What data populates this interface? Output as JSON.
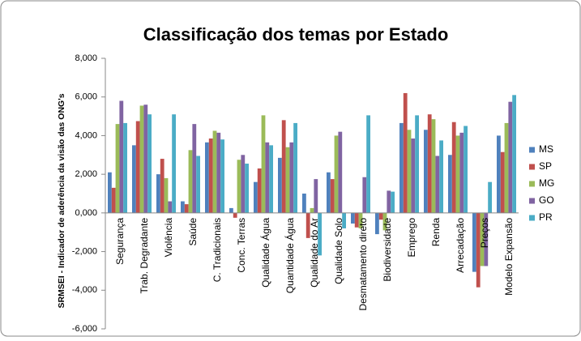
{
  "chart_data": {
    "type": "bar",
    "title": "Classificação dos temas por Estado",
    "y_label": "SRMSEI - Indicador de aderência da visão das ONG's",
    "categories": [
      "Segurança",
      "Trab. Degradante",
      "Violência",
      "Saúde",
      "C. Tradicionais",
      "Conc. Terras",
      "Qualidade Água",
      "Quantidade Água",
      "Qualidade do Ar",
      "Qualidade Solo",
      "Desmatamento direto",
      "Biodiversidade",
      "Emprego",
      "Renda",
      "Arrecadação",
      "Preços",
      "Modelo Expansão"
    ],
    "series": [
      {
        "name": "MS",
        "color": "#4f81bd",
        "values": [
          2.1,
          3.5,
          2.0,
          0.6,
          3.65,
          0.25,
          1.6,
          2.85,
          1.0,
          2.1,
          -0.55,
          -1.1,
          4.65,
          4.3,
          3.0,
          -3.05,
          4.0
        ]
      },
      {
        "name": "SP",
        "color": "#c0504d",
        "values": [
          1.3,
          4.75,
          2.8,
          0.45,
          3.85,
          -0.25,
          2.3,
          4.8,
          -1.3,
          1.75,
          -0.75,
          -0.35,
          6.2,
          5.1,
          4.7,
          -3.85,
          3.15
        ]
      },
      {
        "name": "MG",
        "color": "#9bbb59",
        "values": [
          4.6,
          5.55,
          1.8,
          3.25,
          4.25,
          2.75,
          5.05,
          3.4,
          0.25,
          4.0,
          -0.8,
          -0.9,
          4.3,
          4.85,
          4.0,
          -2.75,
          4.65
        ]
      },
      {
        "name": "GO",
        "color": "#8064a2",
        "values": [
          5.8,
          5.6,
          0.6,
          4.6,
          4.15,
          3.0,
          3.65,
          3.65,
          1.75,
          4.2,
          1.85,
          1.15,
          3.85,
          2.95,
          4.15,
          -2.75,
          5.75
        ]
      },
      {
        "name": "PR",
        "color": "#4bacc6",
        "values": [
          4.65,
          5.1,
          5.1,
          2.95,
          3.8,
          2.55,
          3.5,
          4.65,
          -2.2,
          -0.8,
          5.05,
          1.1,
          5.05,
          3.75,
          4.5,
          1.6,
          6.1
        ]
      }
    ],
    "ylim": [
      -6,
      8
    ],
    "yticks": [
      {
        "value": -6,
        "label": "-6,000"
      },
      {
        "value": -4,
        "label": "-4,000"
      },
      {
        "value": -2,
        "label": "-2,000"
      },
      {
        "value": 0,
        "label": "0,000"
      },
      {
        "value": 2,
        "label": "2,000"
      },
      {
        "value": 4,
        "label": "4,000"
      },
      {
        "value": 6,
        "label": "6,000"
      },
      {
        "value": 8,
        "label": "8,000"
      }
    ],
    "grid": false,
    "legend": "right"
  }
}
